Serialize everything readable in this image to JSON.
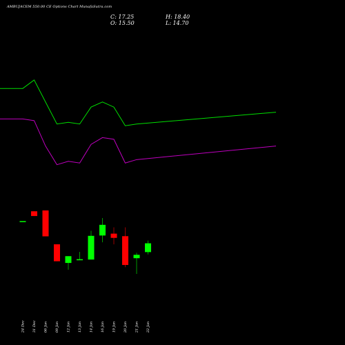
{
  "header": {
    "title": "AMBUJACEM 550.00  CE Options  Chart MunafaSutra.com",
    "close": "C: 17.25",
    "open": "O: 15.50",
    "high": "H: 18.40",
    "low": "L: 14.70"
  },
  "colors": {
    "background": "#000000",
    "up": "#00ff00",
    "down": "#ff0000",
    "upper_line": "#00e000",
    "lower_line": "#c000c0",
    "text": "#ffffff"
  },
  "chart_data": {
    "type": "candlestick",
    "x": [
      "24 Dec",
      "31 Dec",
      "06 Jan",
      "09 Jan",
      "12 Jan",
      "13 Jan",
      "14 Jan",
      "16 Jan",
      "19 Jan",
      "20 Jan",
      "21 Jan",
      "22 Jan"
    ],
    "candles": [
      {
        "open": 21.7,
        "high": 21.7,
        "low": 21.7,
        "close": 21.7
      },
      {
        "open": 27.5,
        "high": 27.5,
        "low": 24.7,
        "close": 24.7
      },
      {
        "open": 28.0,
        "high": 28.0,
        "low": 12.7,
        "close": 12.7
      },
      {
        "open": 8.0,
        "high": 8.0,
        "low": -2.0,
        "close": -2.0
      },
      {
        "open": -3.0,
        "high": 1.0,
        "low": -7.0,
        "close": 1.0
      },
      {
        "open": -1.2,
        "high": 3.5,
        "low": -1.2,
        "close": -0.8
      },
      {
        "open": -1.0,
        "high": 16.0,
        "low": -1.0,
        "close": 13.0
      },
      {
        "open": 13.2,
        "high": 23.5,
        "low": 9.2,
        "close": 19.5
      },
      {
        "open": 14.3,
        "high": 18.0,
        "low": 8.0,
        "close": 11.8
      },
      {
        "open": 12.8,
        "high": 18.0,
        "low": -5.5,
        "close": -4.2
      },
      {
        "open": -0.2,
        "high": 3.0,
        "low": -9.5,
        "close": 1.8
      },
      {
        "open": 3.4,
        "high": 10.2,
        "low": 2.0,
        "close": 8.6
      }
    ],
    "upper_band": [
      100,
      100,
      105,
      92,
      79,
      80,
      79,
      89,
      92,
      89,
      78,
      79,
      86
    ],
    "lower_band": [
      82,
      82,
      81,
      66,
      55,
      57,
      56,
      67,
      71,
      70,
      56,
      58,
      66
    ],
    "upper_band_x_index": [
      -1,
      0,
      1,
      2,
      3,
      4,
      5,
      6,
      7,
      8,
      9,
      10,
      11
    ],
    "ylim": [
      -27,
      140
    ],
    "grid": false,
    "legend": "none"
  }
}
